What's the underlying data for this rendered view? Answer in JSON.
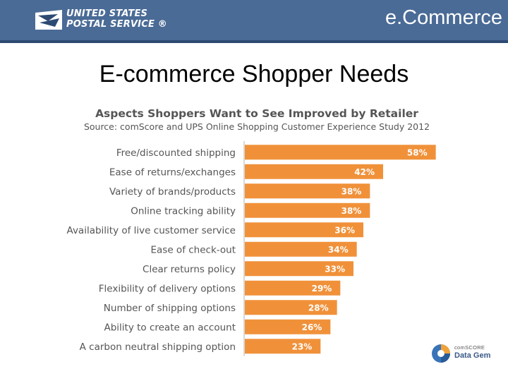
{
  "header": {
    "logo_line1": "UNITED STATES",
    "logo_line2": "POSTAL SERVICE ®",
    "section": "e.Commerce",
    "logo_icon": "eagle-logo-icon"
  },
  "slide": {
    "title": "E-commerce Shopper Needs"
  },
  "chart_data": {
    "type": "bar",
    "orientation": "horizontal",
    "title": "Aspects Shoppers Want to See Improved by Retailer",
    "subtitle": "Source: comScore and UPS Online Shopping Customer Experience Study 2012",
    "categories": [
      "Free/discounted shipping",
      "Ease of returns/exchanges",
      "Variety of brands/products",
      "Online tracking ability",
      "Availability of live customer service",
      "Ease of check-out",
      "Clear returns policy",
      "Flexibility of delivery options",
      "Number of shipping options",
      "Ability to create an account",
      "A carbon neutral shipping option"
    ],
    "values": [
      58,
      42,
      38,
      38,
      36,
      34,
      33,
      29,
      28,
      26,
      23
    ],
    "value_labels": [
      "58%",
      "42%",
      "38%",
      "38%",
      "36%",
      "34%",
      "33%",
      "29%",
      "28%",
      "26%",
      "23%"
    ],
    "unit": "%",
    "xlim": [
      0,
      60
    ],
    "grid": false,
    "legend": "none",
    "bar_color": "#f0913a",
    "label_color": "#555555"
  },
  "footer": {
    "brand": "comSCORE",
    "product": "Data Gem"
  }
}
